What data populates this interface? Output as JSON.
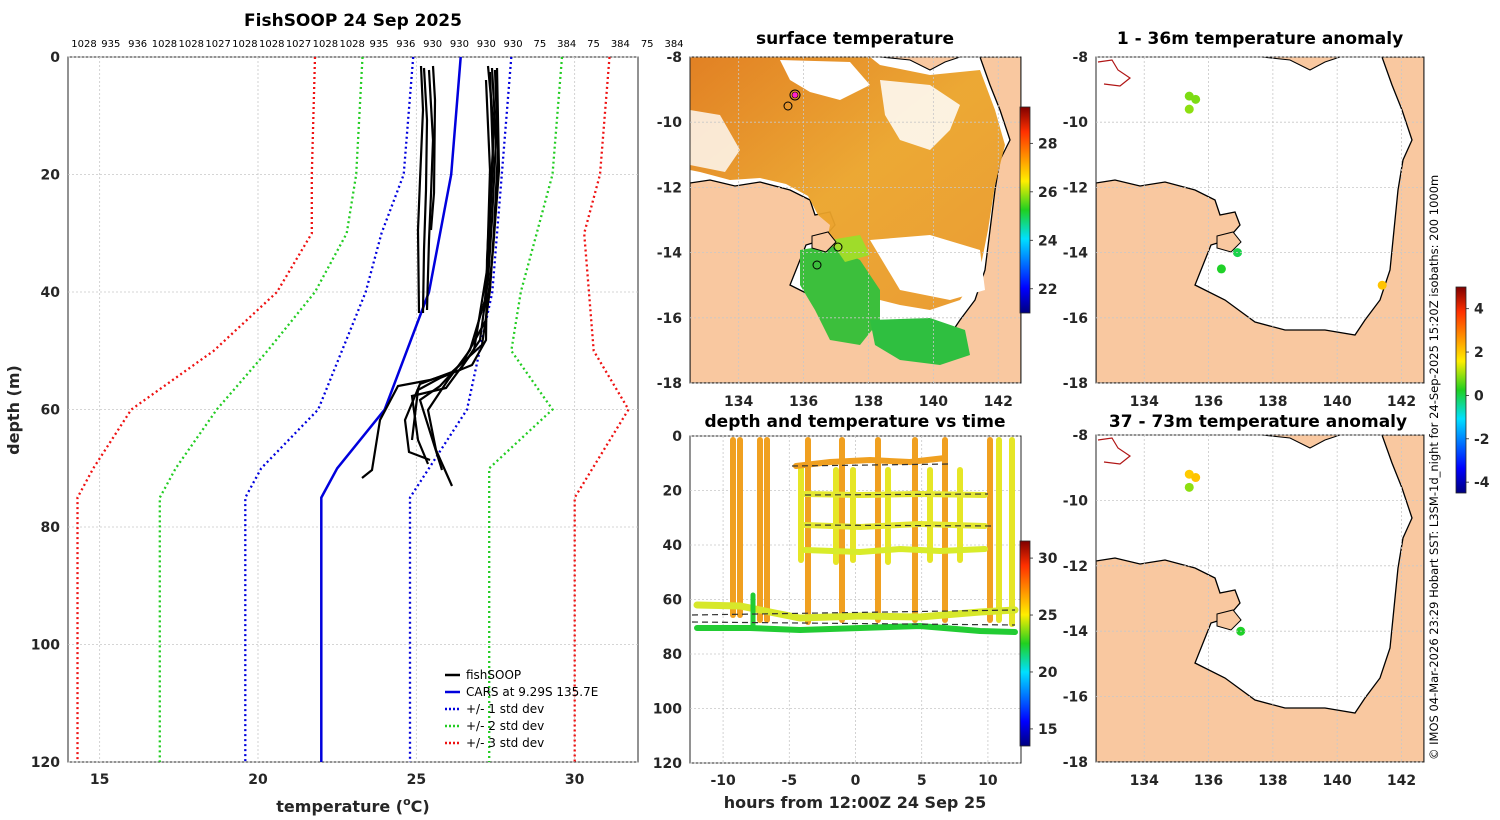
{
  "colors": {
    "land": "#f9c8a0",
    "fishsoop": "#000000",
    "cars": "#0000dd",
    "std1": "#0000dd",
    "std2": "#22cc22",
    "std3": "#ee1111"
  },
  "side_caption": "© IMOS 04-Mar-2026 23:29 Hobart SST: L3SM-1d_night for 24-Sep-2025 15:20Z isobaths: 200  1000m",
  "chart_data": [
    {
      "id": "profile",
      "type": "line",
      "title": "FishSOOP 24 Sep 2025",
      "xlabel": "temperature (°C)",
      "xlabel_main": "temperature (",
      "xlabel_unit": "o",
      "xlabel_end": "C)",
      "ylabel": "depth (m)",
      "xlim": [
        14,
        32
      ],
      "ylim": [
        0,
        120
      ],
      "xticks": [
        "15",
        "20",
        "25",
        "30"
      ],
      "yticks": [
        "0",
        "20",
        "40",
        "60",
        "80",
        "100",
        "120"
      ],
      "top_ids": [
        "1028",
        "935",
        "936",
        "1028",
        "1028",
        "1027",
        "1028",
        "1028",
        "1027",
        "1028",
        "1028",
        "935",
        "936",
        "930",
        "930",
        "930",
        "930",
        "75",
        "384",
        "75",
        "384",
        "75",
        "384"
      ],
      "legend": [
        "fishSOOP",
        "CARS at 9.29S 135.7E",
        "+/- 1 std dev",
        "+/- 2 std dev",
        "+/- 3 std dev"
      ],
      "series": [
        {
          "name": "CARS mean",
          "points": [
            [
              26.4,
              0
            ],
            [
              26.1,
              20
            ],
            [
              25.4,
              40
            ],
            [
              24.0,
              60
            ],
            [
              22.5,
              70
            ],
            [
              22.0,
              75
            ],
            [
              22.0,
              120
            ]
          ]
        },
        {
          "name": "+1 std",
          "points": [
            [
              28.0,
              0
            ],
            [
              27.7,
              20
            ],
            [
              27.4,
              40
            ],
            [
              26.6,
              60
            ],
            [
              25.4,
              70
            ],
            [
              24.8,
              75
            ],
            [
              24.8,
              120
            ]
          ]
        },
        {
          "name": "-1 std",
          "points": [
            [
              24.9,
              0
            ],
            [
              24.6,
              20
            ],
            [
              23.9,
              30
            ],
            [
              23.4,
              40
            ],
            [
              21.9,
              60
            ],
            [
              20.1,
              70
            ],
            [
              19.6,
              75
            ],
            [
              19.6,
              120
            ]
          ]
        },
        {
          "name": "+2 std",
          "points": [
            [
              29.6,
              0
            ],
            [
              29.3,
              20
            ],
            [
              28.8,
              30
            ],
            [
              28.3,
              40
            ],
            [
              28.0,
              50
            ],
            [
              29.3,
              60
            ],
            [
              27.3,
              70
            ],
            [
              27.3,
              120
            ]
          ]
        },
        {
          "name": "-2 std",
          "points": [
            [
              23.3,
              0
            ],
            [
              23.1,
              20
            ],
            [
              22.8,
              30
            ],
            [
              21.8,
              40
            ],
            [
              20.3,
              50
            ],
            [
              18.7,
              60
            ],
            [
              17.4,
              70
            ],
            [
              16.9,
              75
            ],
            [
              16.9,
              120
            ]
          ]
        },
        {
          "name": "+3 std",
          "points": [
            [
              31.1,
              0
            ],
            [
              30.8,
              20
            ],
            [
              30.3,
              30
            ],
            [
              30.6,
              50
            ],
            [
              31.7,
              60
            ],
            [
              30.0,
              75
            ],
            [
              30.0,
              120
            ]
          ]
        },
        {
          "name": "-3 std",
          "points": [
            [
              21.8,
              0
            ],
            [
              21.7,
              20
            ],
            [
              21.7,
              30
            ],
            [
              20.6,
              40
            ],
            [
              18.6,
              50
            ],
            [
              16.0,
              60
            ],
            [
              14.8,
              70
            ],
            [
              14.3,
              75
            ],
            [
              14.3,
              120
            ]
          ]
        }
      ]
    },
    {
      "id": "sst",
      "type": "heatmap",
      "title": "surface temperature",
      "xticks": [
        "134",
        "136",
        "138",
        "140",
        "142"
      ],
      "yticks": [
        "-8",
        "-10",
        "-12",
        "-14",
        "-16",
        "-18"
      ],
      "xlim": [
        132.5,
        142.7
      ],
      "ylim": [
        -18,
        -8
      ],
      "colorbar_ticks": [
        "22",
        "24",
        "26",
        "28"
      ],
      "colorbar_range": [
        21,
        29.5
      ]
    },
    {
      "id": "depth_time",
      "type": "scatter",
      "title": "depth and temperature vs time",
      "xlabel": "hours from 12:00Z 24 Sep 25",
      "xlim": [
        -12.5,
        12.5
      ],
      "ylim": [
        0,
        120
      ],
      "xticks": [
        "-10",
        "-5",
        "0",
        "5",
        "10"
      ],
      "yticks": [
        "0",
        "20",
        "40",
        "60",
        "80",
        "100",
        "120"
      ],
      "colorbar_ticks": [
        "15",
        "20",
        "25",
        "30"
      ],
      "colorbar_range": [
        13.5,
        31.5
      ]
    },
    {
      "id": "anom1",
      "type": "scatter",
      "title": "1 - 36m temperature anomaly",
      "xticks": [
        "134",
        "136",
        "138",
        "140",
        "142"
      ],
      "yticks": [
        "-8",
        "-10",
        "-12",
        "-14",
        "-16",
        "-18"
      ],
      "xlim": [
        132.5,
        142.7
      ],
      "ylim": [
        -18,
        -8
      ],
      "points": [
        {
          "lon": 135.4,
          "lat": -9.2,
          "anom": 0.8
        },
        {
          "lon": 135.6,
          "lat": -9.3,
          "anom": 0.8
        },
        {
          "lon": 135.4,
          "lat": -9.6,
          "anom": 0.9
        },
        {
          "lon": 136.9,
          "lat": -14.0,
          "anom": 0.0
        },
        {
          "lon": 136.4,
          "lat": -14.5,
          "anom": 0.2
        },
        {
          "lon": 141.4,
          "lat": -15.0,
          "anom": 2.1
        }
      ],
      "colorbar_ticks": [
        "4",
        "2",
        "0",
        "-2",
        "-4"
      ],
      "colorbar_range": [
        -4.5,
        5
      ]
    },
    {
      "id": "anom2",
      "type": "scatter",
      "title": "37 - 73m temperature anomaly",
      "xticks": [
        "134",
        "136",
        "138",
        "140",
        "142"
      ],
      "yticks": [
        "-8",
        "-10",
        "-12",
        "-14",
        "-16",
        "-18"
      ],
      "xlim": [
        132.5,
        142.7
      ],
      "ylim": [
        -18,
        -8
      ],
      "points": [
        {
          "lon": 135.4,
          "lat": -9.2,
          "anom": 2.0
        },
        {
          "lon": 135.6,
          "lat": -9.3,
          "anom": 2.1
        },
        {
          "lon": 135.4,
          "lat": -9.6,
          "anom": 0.9
        },
        {
          "lon": 137.0,
          "lat": -14.0,
          "anom": 0.2
        }
      ]
    }
  ]
}
